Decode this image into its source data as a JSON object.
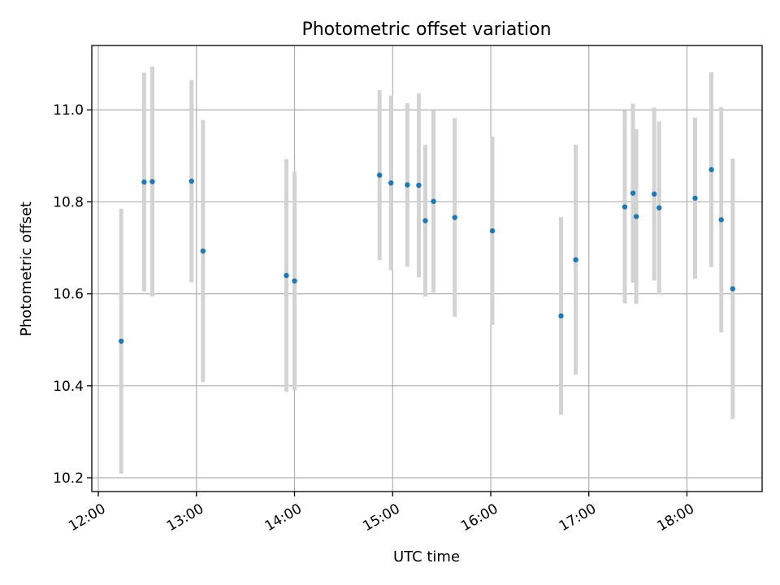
{
  "chart_data": {
    "type": "scatter",
    "title": "Photometric offset variation",
    "xlabel": "UTC time",
    "ylabel": "Photometric offset",
    "x_unit": "UTC time of day (HH:MM)",
    "xlim": [
      "11:56",
      "18:46"
    ],
    "ylim": [
      10.17,
      11.14
    ],
    "x_ticks": [
      "12:00",
      "13:00",
      "14:00",
      "15:00",
      "16:00",
      "17:00",
      "18:00"
    ],
    "y_ticks": [
      "10.2",
      "10.4",
      "10.6",
      "10.8",
      "11.0"
    ],
    "grid": true,
    "error_bar_color": "#d3d3d3",
    "marker_color": "#1f77b4",
    "points": [
      {
        "t": "12:14",
        "y": 10.497,
        "err": 0.288
      },
      {
        "t": "12:28",
        "y": 10.843,
        "err": 0.238
      },
      {
        "t": "12:33",
        "y": 10.844,
        "err": 0.25
      },
      {
        "t": "12:57",
        "y": 10.845,
        "err": 0.22
      },
      {
        "t": "13:04",
        "y": 10.693,
        "err": 0.285
      },
      {
        "t": "13:55",
        "y": 10.64,
        "err": 0.253
      },
      {
        "t": "14:00",
        "y": 10.628,
        "err": 0.238
      },
      {
        "t": "14:52",
        "y": 10.858,
        "err": 0.185
      },
      {
        "t": "14:59",
        "y": 10.841,
        "err": 0.19
      },
      {
        "t": "15:09",
        "y": 10.837,
        "err": 0.178
      },
      {
        "t": "15:16",
        "y": 10.836,
        "err": 0.2
      },
      {
        "t": "15:20",
        "y": 10.759,
        "err": 0.165
      },
      {
        "t": "15:25",
        "y": 10.801,
        "err": 0.198
      },
      {
        "t": "15:38",
        "y": 10.766,
        "err": 0.216
      },
      {
        "t": "16:01",
        "y": 10.737,
        "err": 0.205
      },
      {
        "t": "16:43",
        "y": 10.552,
        "err": 0.215
      },
      {
        "t": "16:52",
        "y": 10.674,
        "err": 0.25
      },
      {
        "t": "17:22",
        "y": 10.789,
        "err": 0.21
      },
      {
        "t": "17:27",
        "y": 10.819,
        "err": 0.195
      },
      {
        "t": "17:29",
        "y": 10.768,
        "err": 0.19
      },
      {
        "t": "17:40",
        "y": 10.817,
        "err": 0.188
      },
      {
        "t": "17:43",
        "y": 10.787,
        "err": 0.188
      },
      {
        "t": "18:05",
        "y": 10.808,
        "err": 0.175
      },
      {
        "t": "18:15",
        "y": 10.87,
        "err": 0.212
      },
      {
        "t": "18:21",
        "y": 10.761,
        "err": 0.245
      },
      {
        "t": "18:28",
        "y": 10.611,
        "err": 0.283
      }
    ]
  }
}
